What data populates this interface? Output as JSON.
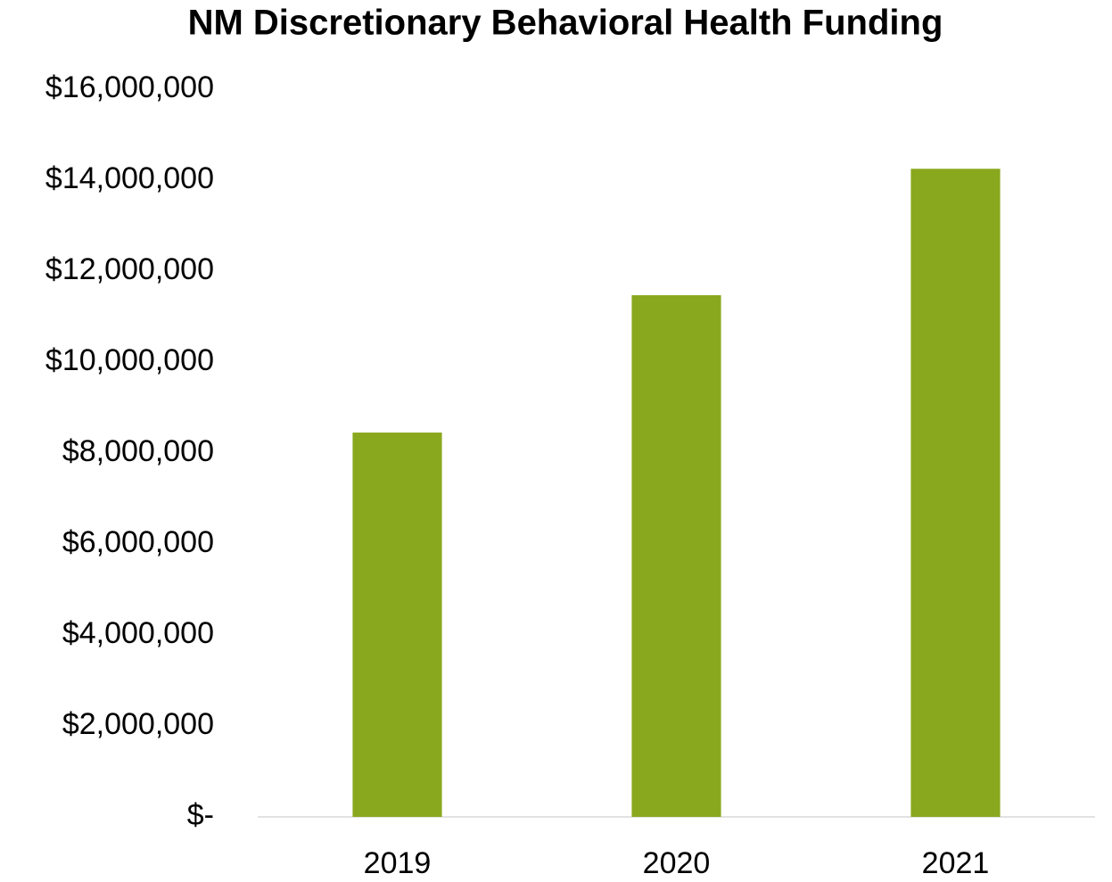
{
  "chart_data": {
    "type": "bar",
    "title": "NM Discretionary Behavioral Health Funding",
    "categories": [
      "2019",
      "2020",
      "2021"
    ],
    "values": [
      8450000,
      11470000,
      14250000
    ],
    "color": "#8aa81e",
    "ylim": [
      0,
      16000000
    ],
    "yticks": [
      {
        "value": 0,
        "label": "$-"
      },
      {
        "value": 2000000,
        "label": "$2,000,000"
      },
      {
        "value": 4000000,
        "label": "$4,000,000"
      },
      {
        "value": 6000000,
        "label": "$6,000,000"
      },
      {
        "value": 8000000,
        "label": "$8,000,000"
      },
      {
        "value": 10000000,
        "label": "$10,000,000"
      },
      {
        "value": 12000000,
        "label": "$12,000,000"
      },
      {
        "value": 14000000,
        "label": "$14,000,000"
      },
      {
        "value": 16000000,
        "label": "$16,000,000"
      }
    ],
    "grid": false
  }
}
